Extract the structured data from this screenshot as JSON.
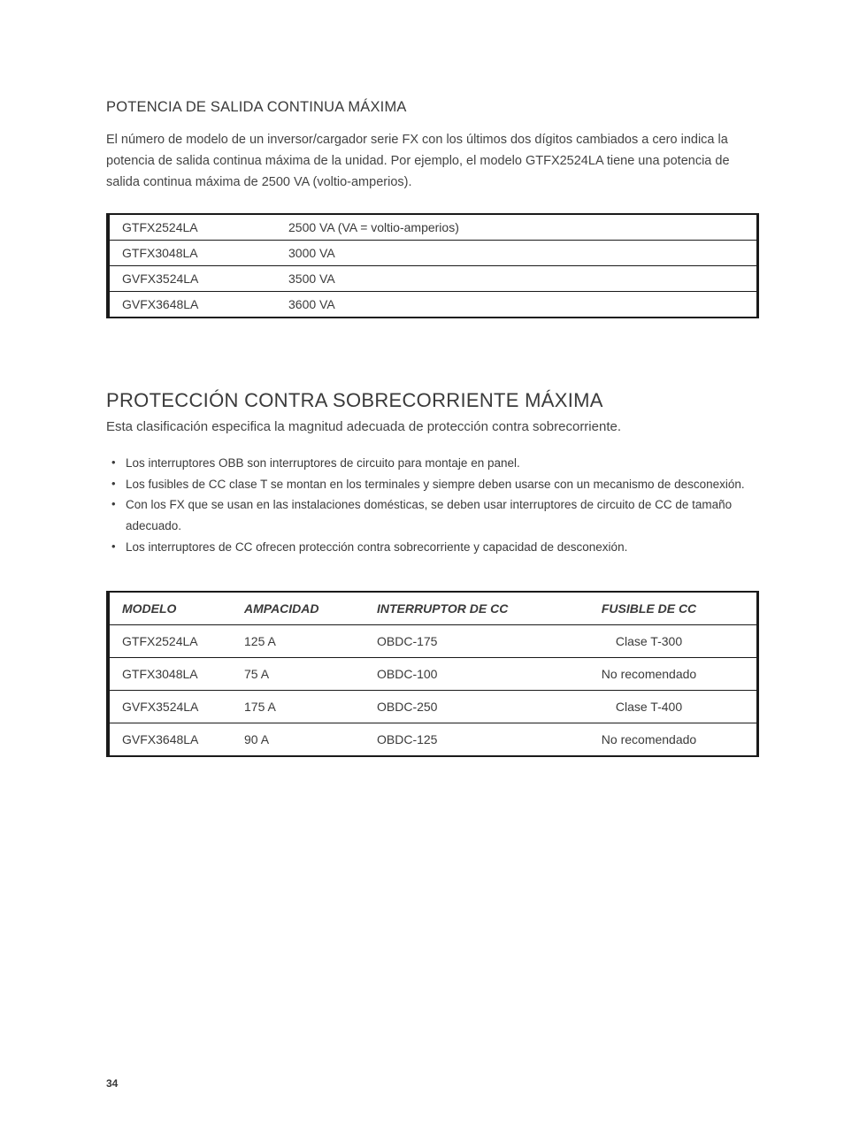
{
  "section1": {
    "heading": "POTENCIA DE SALIDA CONTINUA MÁXIMA",
    "paragraph": "El número de modelo de un inversor/cargador serie FX con los últimos dos dígitos cambiados a cero indica la potencia de salida continua máxima de la unidad. Por ejemplo, el modelo GTFX2524LA tiene una potencia de salida continua máxima de 2500 VA (voltio-amperios).",
    "rows": [
      {
        "model": "GTFX2524LA",
        "value": "2500 VA (VA = voltio-amperios)"
      },
      {
        "model": "GTFX3048LA",
        "value": "3000 VA"
      },
      {
        "model": "GVFX3524LA",
        "value": "3500 VA"
      },
      {
        "model": "GVFX3648LA",
        "value": "3600 VA"
      }
    ]
  },
  "section2": {
    "heading": "PROTECCIÓN CONTRA SOBRECORRIENTE MÁXIMA",
    "subtext": "Esta clasificación especifica la magnitud adecuada de protección contra sobrecorriente.",
    "bullets": [
      "Los interruptores OBB son interruptores de circuito para montaje en panel.",
      "Los fusibles de CC clase T se montan en los terminales y siempre deben usarse con un mecanismo de desconexión.",
      "Con los FX que se usan en las instalaciones domésticas, se deben usar interruptores de circuito de CC de tamaño adecuado.",
      "Los interruptores de CC ofrecen protección contra sobrecorriente y capacidad de desconexión."
    ],
    "headers": [
      "MODELO",
      "AMPACIDAD",
      "INTERRUPTOR DE CC",
      "FUSIBLE DE CC"
    ],
    "rows": [
      [
        "GTFX2524LA",
        "125 A",
        "OBDC-175",
        "Clase T-300"
      ],
      [
        "GTFX3048LA",
        "75 A",
        "OBDC-100",
        "No recomendado"
      ],
      [
        "GVFX3524LA",
        "175 A",
        "OBDC-250",
        "Clase T-400"
      ],
      [
        "GVFX3648LA",
        "90 A",
        "OBDC-125",
        "No recomendado"
      ]
    ]
  },
  "page_number": "34"
}
